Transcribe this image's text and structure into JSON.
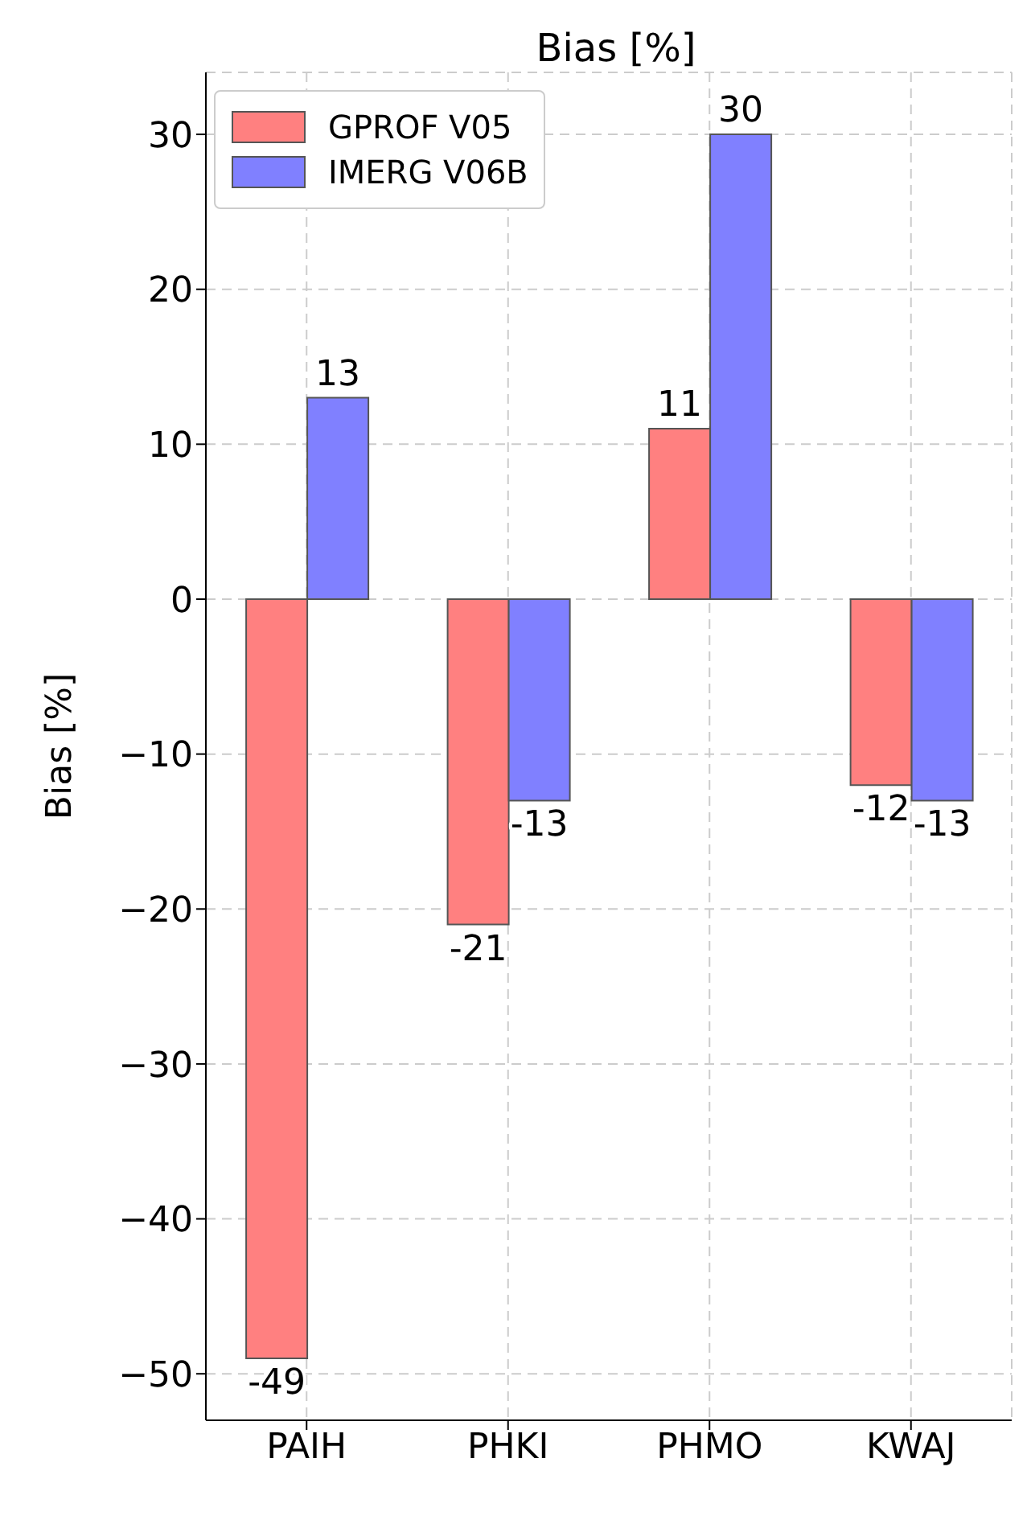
{
  "chart_data": {
    "type": "bar",
    "title": "Bias [%]",
    "ylabel": "Bias [%]",
    "categories": [
      "PAIH",
      "PHKI",
      "PHMO",
      "KWAJ"
    ],
    "series": [
      {
        "name": "GPROF V05",
        "color": "#ff8080",
        "values": [
          -49,
          -21,
          11,
          -12
        ]
      },
      {
        "name": "IMERG V06B",
        "color": "#8080ff",
        "values": [
          13,
          -13,
          30,
          -13
        ]
      }
    ],
    "ylim": [
      -53,
      34
    ],
    "yticks": [
      -50,
      -40,
      -30,
      -20,
      -10,
      0,
      10,
      20,
      30
    ],
    "grid": true,
    "legend": "top left",
    "data_labels": true
  }
}
